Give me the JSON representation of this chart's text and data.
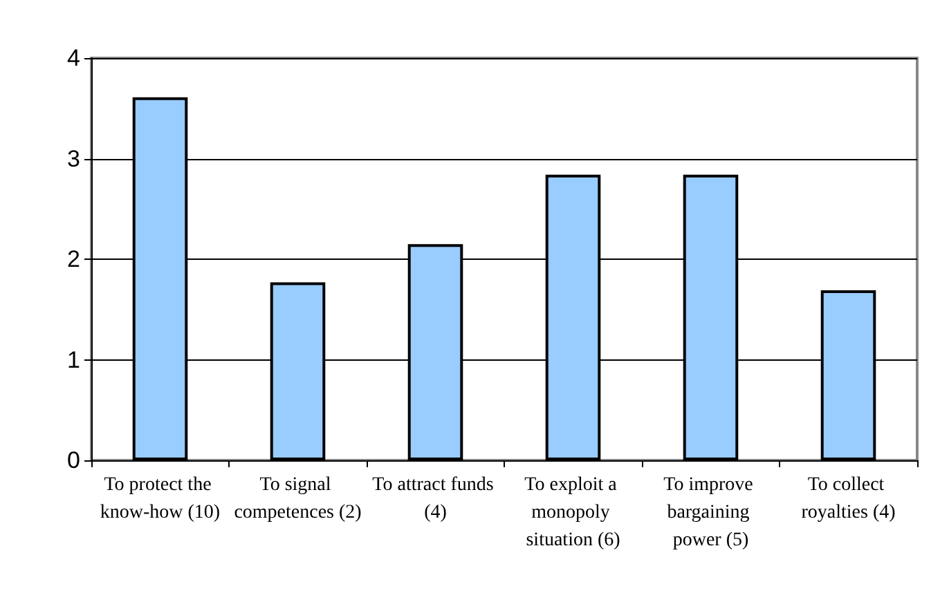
{
  "chart_data": {
    "type": "bar",
    "categories": [
      "To protect the know-how (10)",
      "To signal competences (2)",
      "To attract funds (4)",
      "To exploit a monopoly situation (6)",
      "To improve bargaining power (5)",
      "To collect royalties (4)"
    ],
    "values": [
      3.61,
      1.77,
      2.15,
      2.84,
      2.84,
      1.69
    ],
    "color": "#99ccff",
    "ylim": [
      0,
      4
    ],
    "yticks": [
      0,
      1,
      2,
      3,
      4
    ],
    "grid": "y"
  }
}
